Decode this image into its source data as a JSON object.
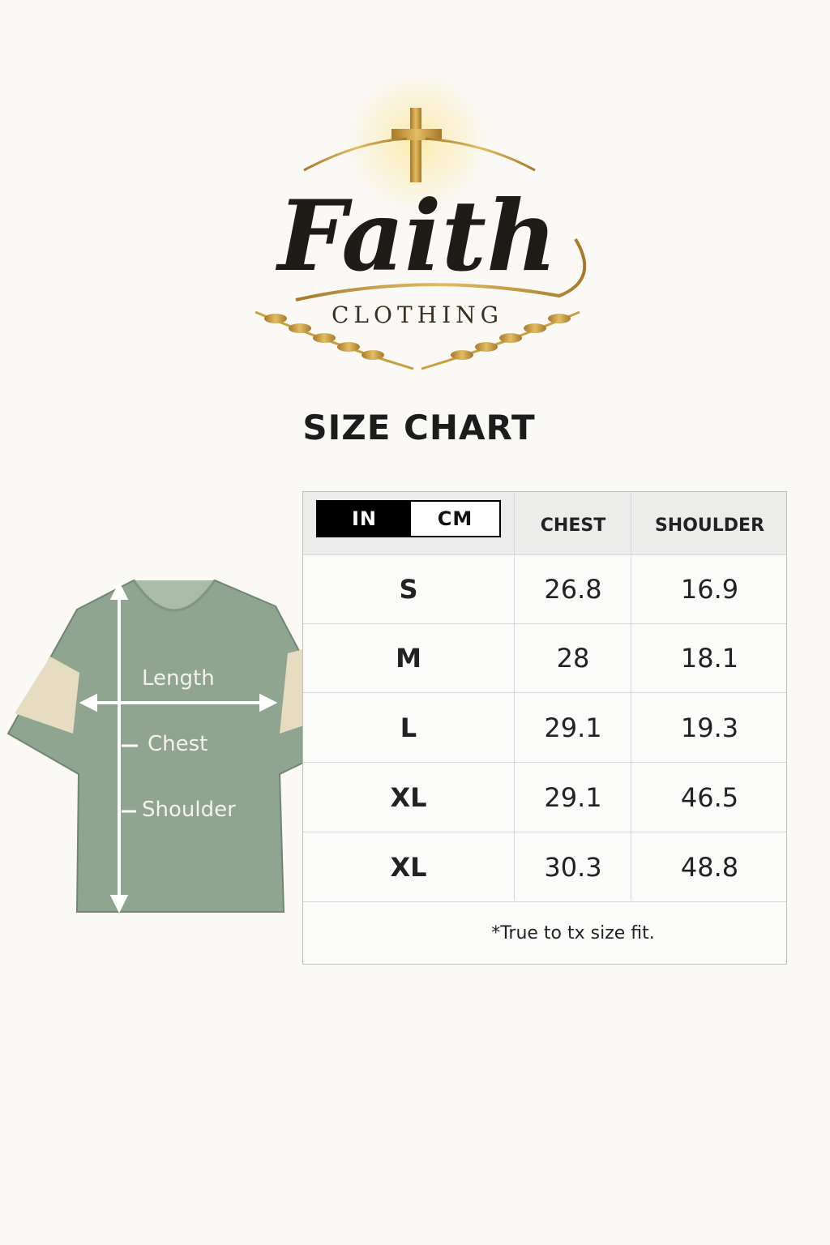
{
  "brand": {
    "name": "Faith",
    "tagline": "CLOTHING"
  },
  "title": "SIZE CHART",
  "unit_toggle": {
    "options": [
      "IN",
      "CM"
    ],
    "selected": "IN"
  },
  "table": {
    "columns": [
      "CHEST",
      "SHOULDER"
    ],
    "rows": [
      {
        "size": "S",
        "chest": "26.8",
        "shoulder": "16.9"
      },
      {
        "size": "M",
        "chest": "28",
        "shoulder": "18.1"
      },
      {
        "size": "L",
        "chest": "29.1",
        "shoulder": "19.3"
      },
      {
        "size": "XL",
        "chest": "29.1",
        "shoulder": "46.5"
      },
      {
        "size": "XL",
        "chest": "30.3",
        "shoulder": "48.8"
      }
    ],
    "footnote": "*True to tx size fit."
  },
  "diagram": {
    "labels": {
      "length": "Length",
      "chest": "Chest",
      "shoulder": "Shoulder"
    }
  },
  "colors": {
    "gold": "#c9a040",
    "shirt_green": "#8fa58f",
    "stripe_cream": "#e6dcc2",
    "dark": "#1c1a17"
  }
}
